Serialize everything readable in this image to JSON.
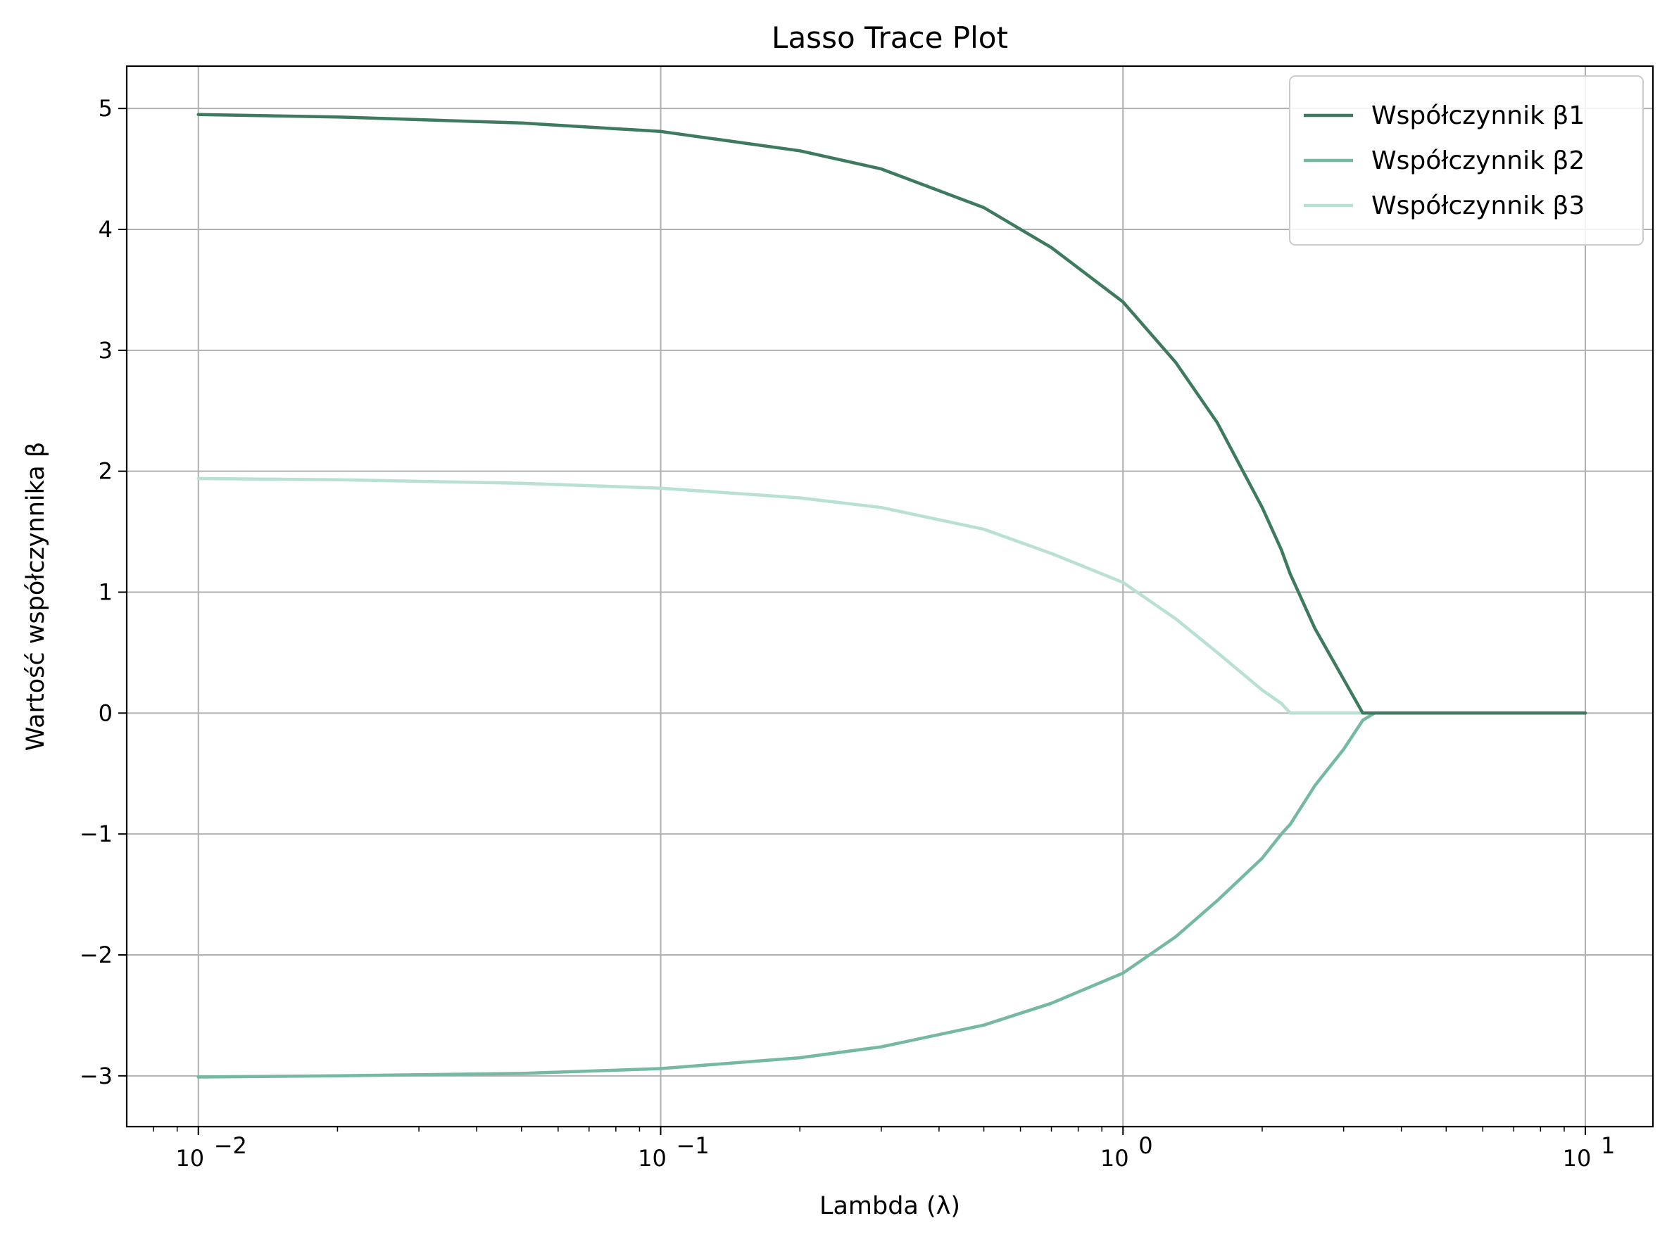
{
  "chart_data": {
    "type": "line",
    "title": "Lasso Trace Plot",
    "xlabel": "Lambda (λ)",
    "ylabel": "Wartość współczynnika β",
    "xscale": "log",
    "xlim": [
      0.007,
      14
    ],
    "ylim": [
      -3.42,
      5.35
    ],
    "xticks": [
      0.01,
      0.1,
      1,
      10
    ],
    "xtick_labels": [
      {
        "base": "10",
        "exp": "−2"
      },
      {
        "base": "10",
        "exp": "−1"
      },
      {
        "base": "10",
        "exp": "0"
      },
      {
        "base": "10",
        "exp": "1"
      }
    ],
    "yticks": [
      5,
      4,
      3,
      2,
      1,
      0,
      -1,
      -2,
      -3
    ],
    "ytick_labels": [
      "5",
      "4",
      "3",
      "2",
      "1",
      "0",
      "−1",
      "−2",
      "−3"
    ],
    "grid": true,
    "legend_position": "top-right",
    "x": [
      0.01,
      0.02,
      0.05,
      0.1,
      0.2,
      0.3,
      0.5,
      0.7,
      1.0,
      1.3,
      1.6,
      2.0,
      2.2,
      2.3,
      2.6,
      3.0,
      3.3,
      3.5,
      5.0,
      7.0,
      10.0
    ],
    "series": [
      {
        "name": "Współczynnik β1",
        "color": "#3d7a5e",
        "values": [
          4.95,
          4.93,
          4.88,
          4.81,
          4.65,
          4.5,
          4.18,
          3.85,
          3.4,
          2.9,
          2.4,
          1.7,
          1.35,
          1.15,
          0.7,
          0.28,
          0.0,
          0.0,
          0.0,
          0.0,
          0.0
        ]
      },
      {
        "name": "Współczynnik β2",
        "color": "#74b9a0",
        "values": [
          -3.01,
          -3.0,
          -2.98,
          -2.94,
          -2.85,
          -2.76,
          -2.58,
          -2.4,
          -2.15,
          -1.85,
          -1.55,
          -1.2,
          -1.0,
          -0.92,
          -0.6,
          -0.3,
          -0.06,
          0.0,
          0.0,
          0.0,
          0.0
        ]
      },
      {
        "name": "Współczynnik β3",
        "color": "#b8e0d4",
        "values": [
          1.94,
          1.93,
          1.9,
          1.86,
          1.78,
          1.7,
          1.52,
          1.32,
          1.08,
          0.78,
          0.5,
          0.19,
          0.08,
          0.0,
          0.0,
          0.0,
          0.0,
          0.0,
          0.0,
          0.0,
          0.0
        ]
      }
    ]
  }
}
